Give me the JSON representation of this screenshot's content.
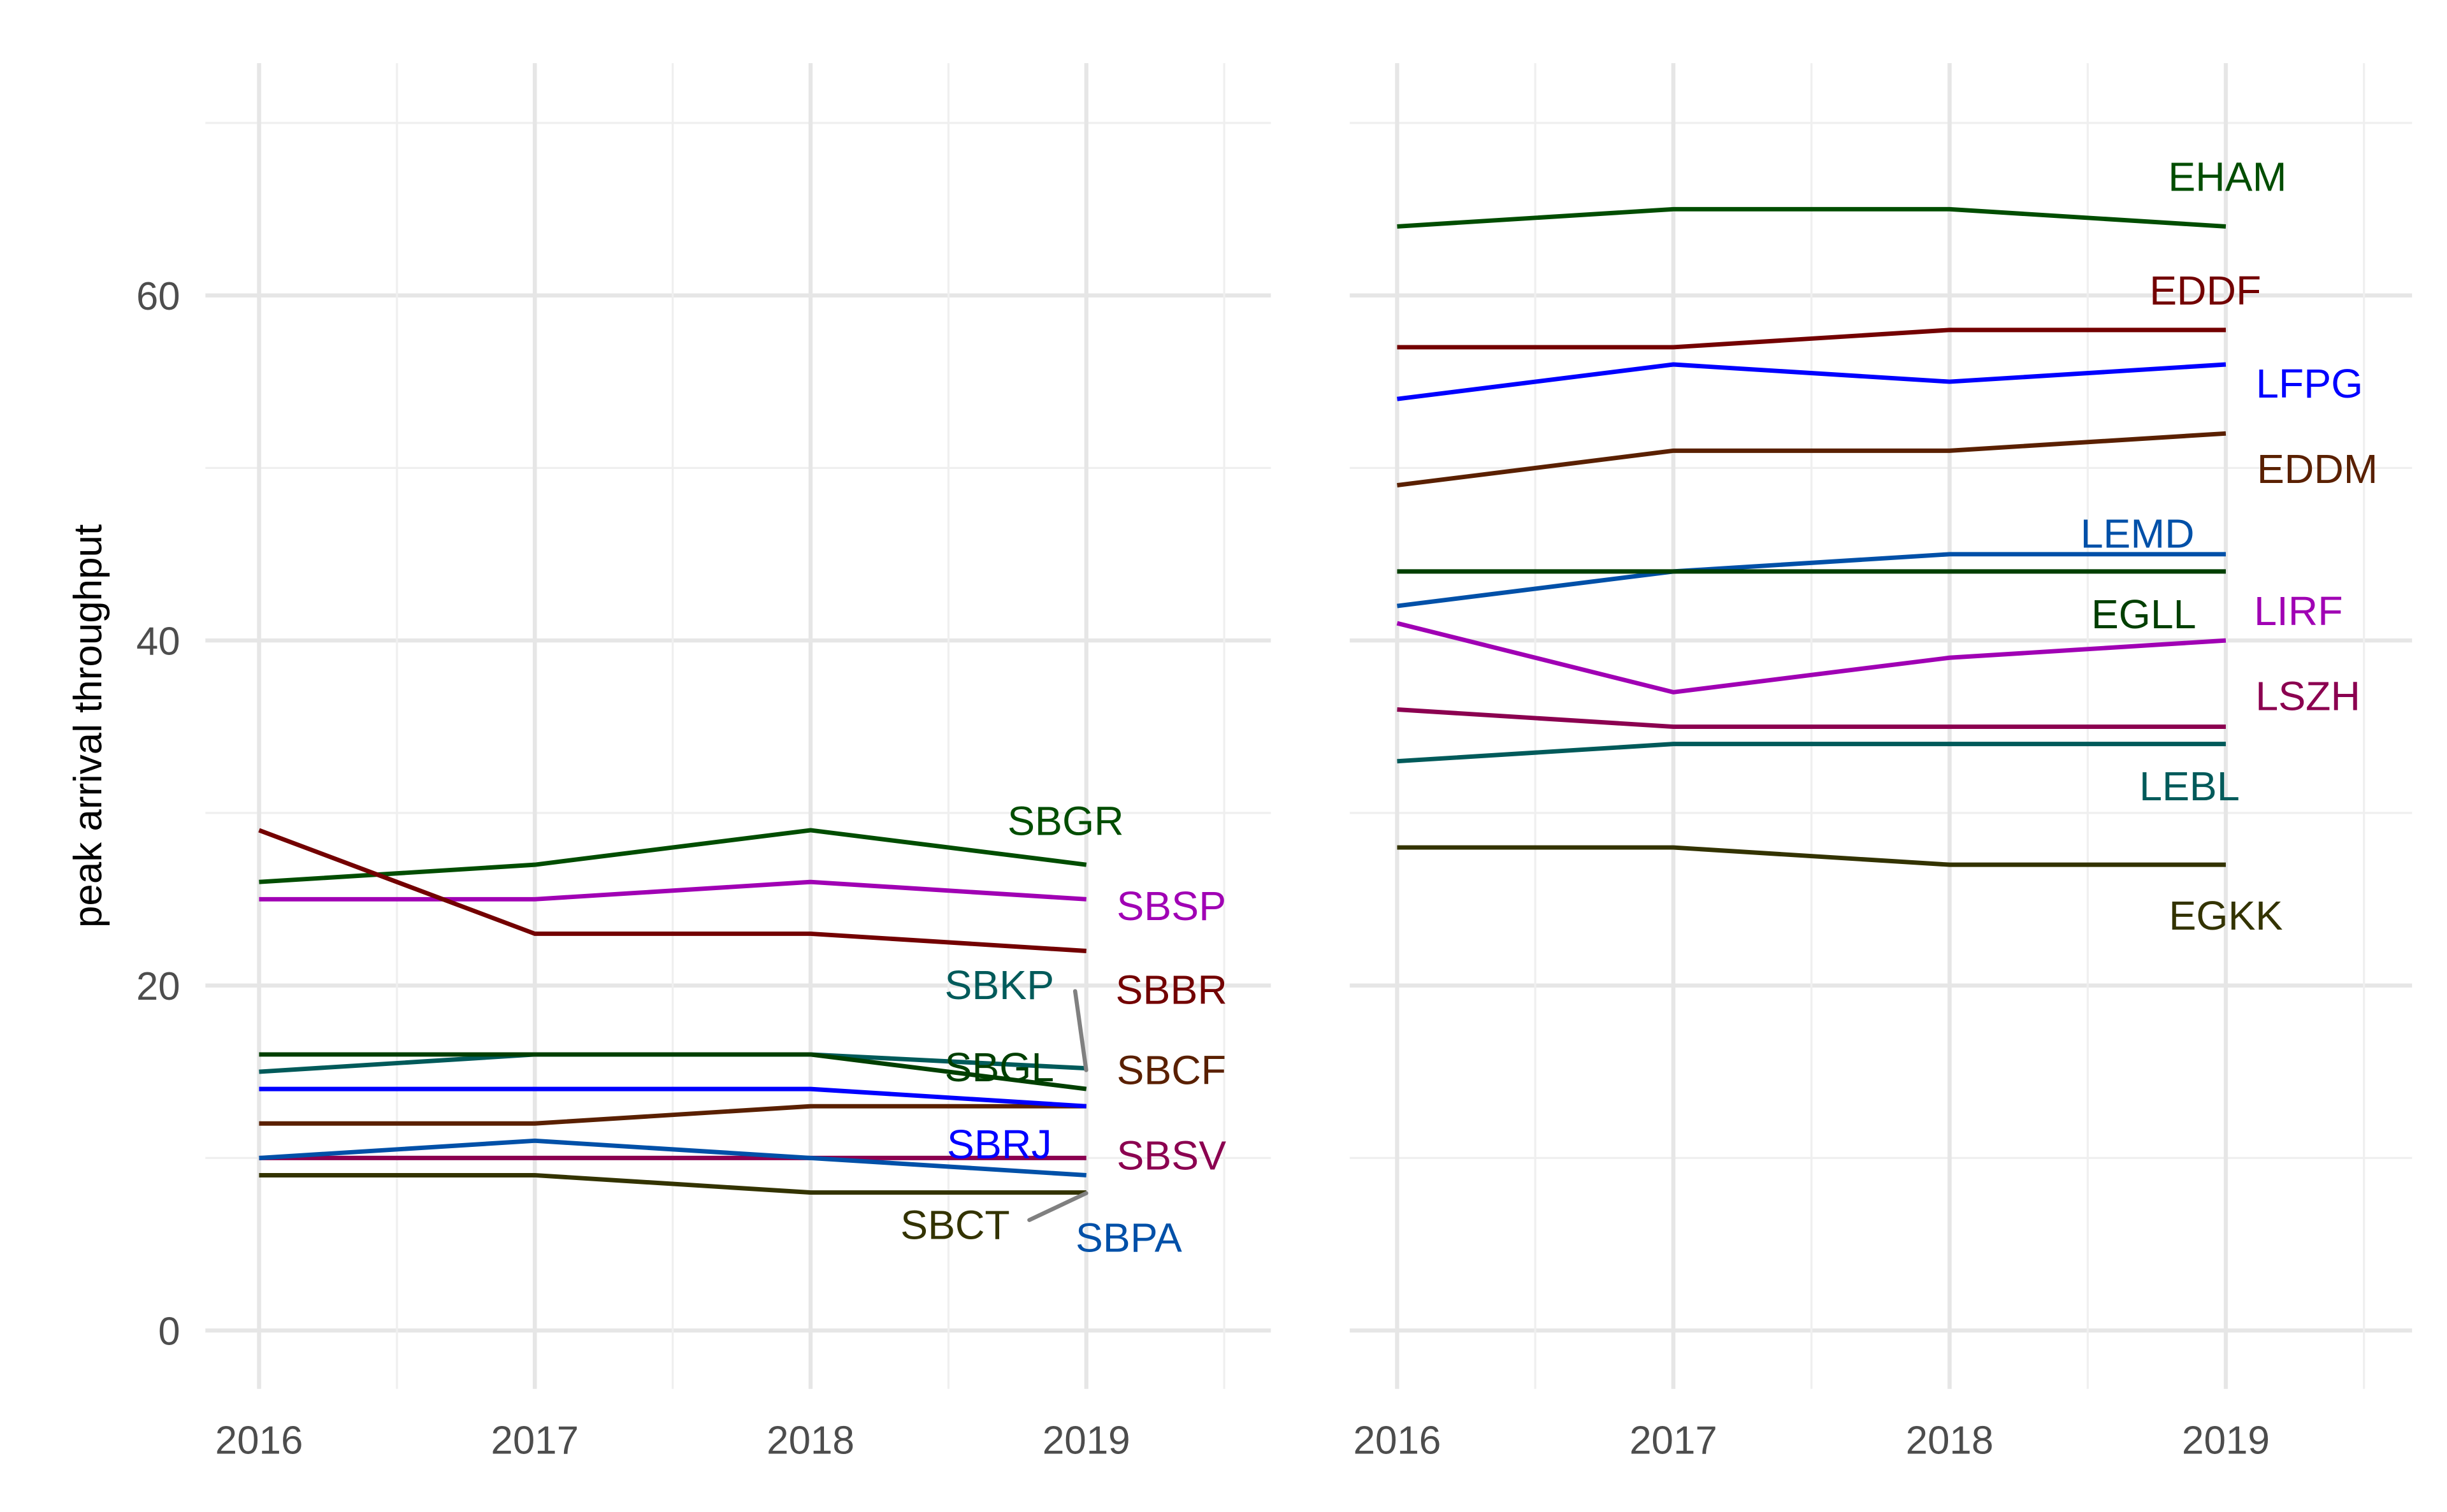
{
  "chart_data": [
    {
      "type": "line",
      "panel": "left",
      "ylabel": "peak arrival throughput",
      "xlabel": "",
      "x": [
        2016,
        2017,
        2018,
        2019
      ],
      "x_ticks": [
        "2016",
        "2017",
        "2018",
        "2019"
      ],
      "y_ticks": [
        "0",
        "20",
        "40",
        "60"
      ],
      "ylim": [
        -3,
        73
      ],
      "grid": true,
      "series": [
        {
          "name": "SBGR",
          "color": "#004d00",
          "values": [
            26,
            27,
            29,
            27
          ]
        },
        {
          "name": "SBSP",
          "color": "#a000b4",
          "values": [
            25,
            25,
            26,
            25
          ]
        },
        {
          "name": "SBBR",
          "color": "#730000",
          "values": [
            29,
            23,
            23,
            22
          ]
        },
        {
          "name": "SBKP",
          "color": "#005a5a",
          "values": [
            15,
            16,
            16,
            15.2
          ]
        },
        {
          "name": "SBGL",
          "color": "#003f00",
          "values": [
            16,
            16,
            16,
            14
          ]
        },
        {
          "name": "SBCF",
          "color": "#5a2000",
          "values": [
            12,
            12,
            13,
            13
          ]
        },
        {
          "name": "SBRJ",
          "color": "#0000ff",
          "values": [
            14,
            14,
            14,
            13
          ]
        },
        {
          "name": "SBSV",
          "color": "#8b0050",
          "values": [
            10,
            10,
            10,
            10
          ]
        },
        {
          "name": "SBCT",
          "color": "#333300",
          "values": [
            9,
            9,
            8,
            8
          ]
        },
        {
          "name": "SBPA",
          "color": "#0050a8",
          "values": [
            10,
            11,
            10,
            9
          ]
        }
      ]
    },
    {
      "type": "line",
      "panel": "right",
      "x": [
        2016,
        2017,
        2018,
        2019
      ],
      "x_ticks": [
        "2016",
        "2017",
        "2018",
        "2019"
      ],
      "ylim": [
        -3,
        73
      ],
      "grid": true,
      "series": [
        {
          "name": "EHAM",
          "color": "#004d00",
          "values": [
            64,
            65,
            65,
            64
          ]
        },
        {
          "name": "EDDF",
          "color": "#730000",
          "values": [
            57,
            57,
            58,
            58
          ]
        },
        {
          "name": "LFPG",
          "color": "#0000ff",
          "values": [
            54,
            56,
            55,
            56
          ]
        },
        {
          "name": "EDDM",
          "color": "#5a2000",
          "values": [
            49,
            51,
            51,
            52
          ]
        },
        {
          "name": "LEMD",
          "color": "#0050a8",
          "values": [
            42,
            44,
            45,
            45
          ]
        },
        {
          "name": "EGLL",
          "color": "#003f00",
          "values": [
            44,
            44,
            44,
            44
          ]
        },
        {
          "name": "LIRF",
          "color": "#a000b4",
          "values": [
            41,
            37,
            39,
            40
          ]
        },
        {
          "name": "LSZH",
          "color": "#8b0050",
          "values": [
            36,
            35,
            35,
            35
          ]
        },
        {
          "name": "LEBL",
          "color": "#005a5a",
          "values": [
            33,
            34,
            34,
            34
          ]
        },
        {
          "name": "EGKK",
          "color": "#333300",
          "values": [
            28,
            28,
            27,
            27
          ]
        }
      ]
    }
  ]
}
